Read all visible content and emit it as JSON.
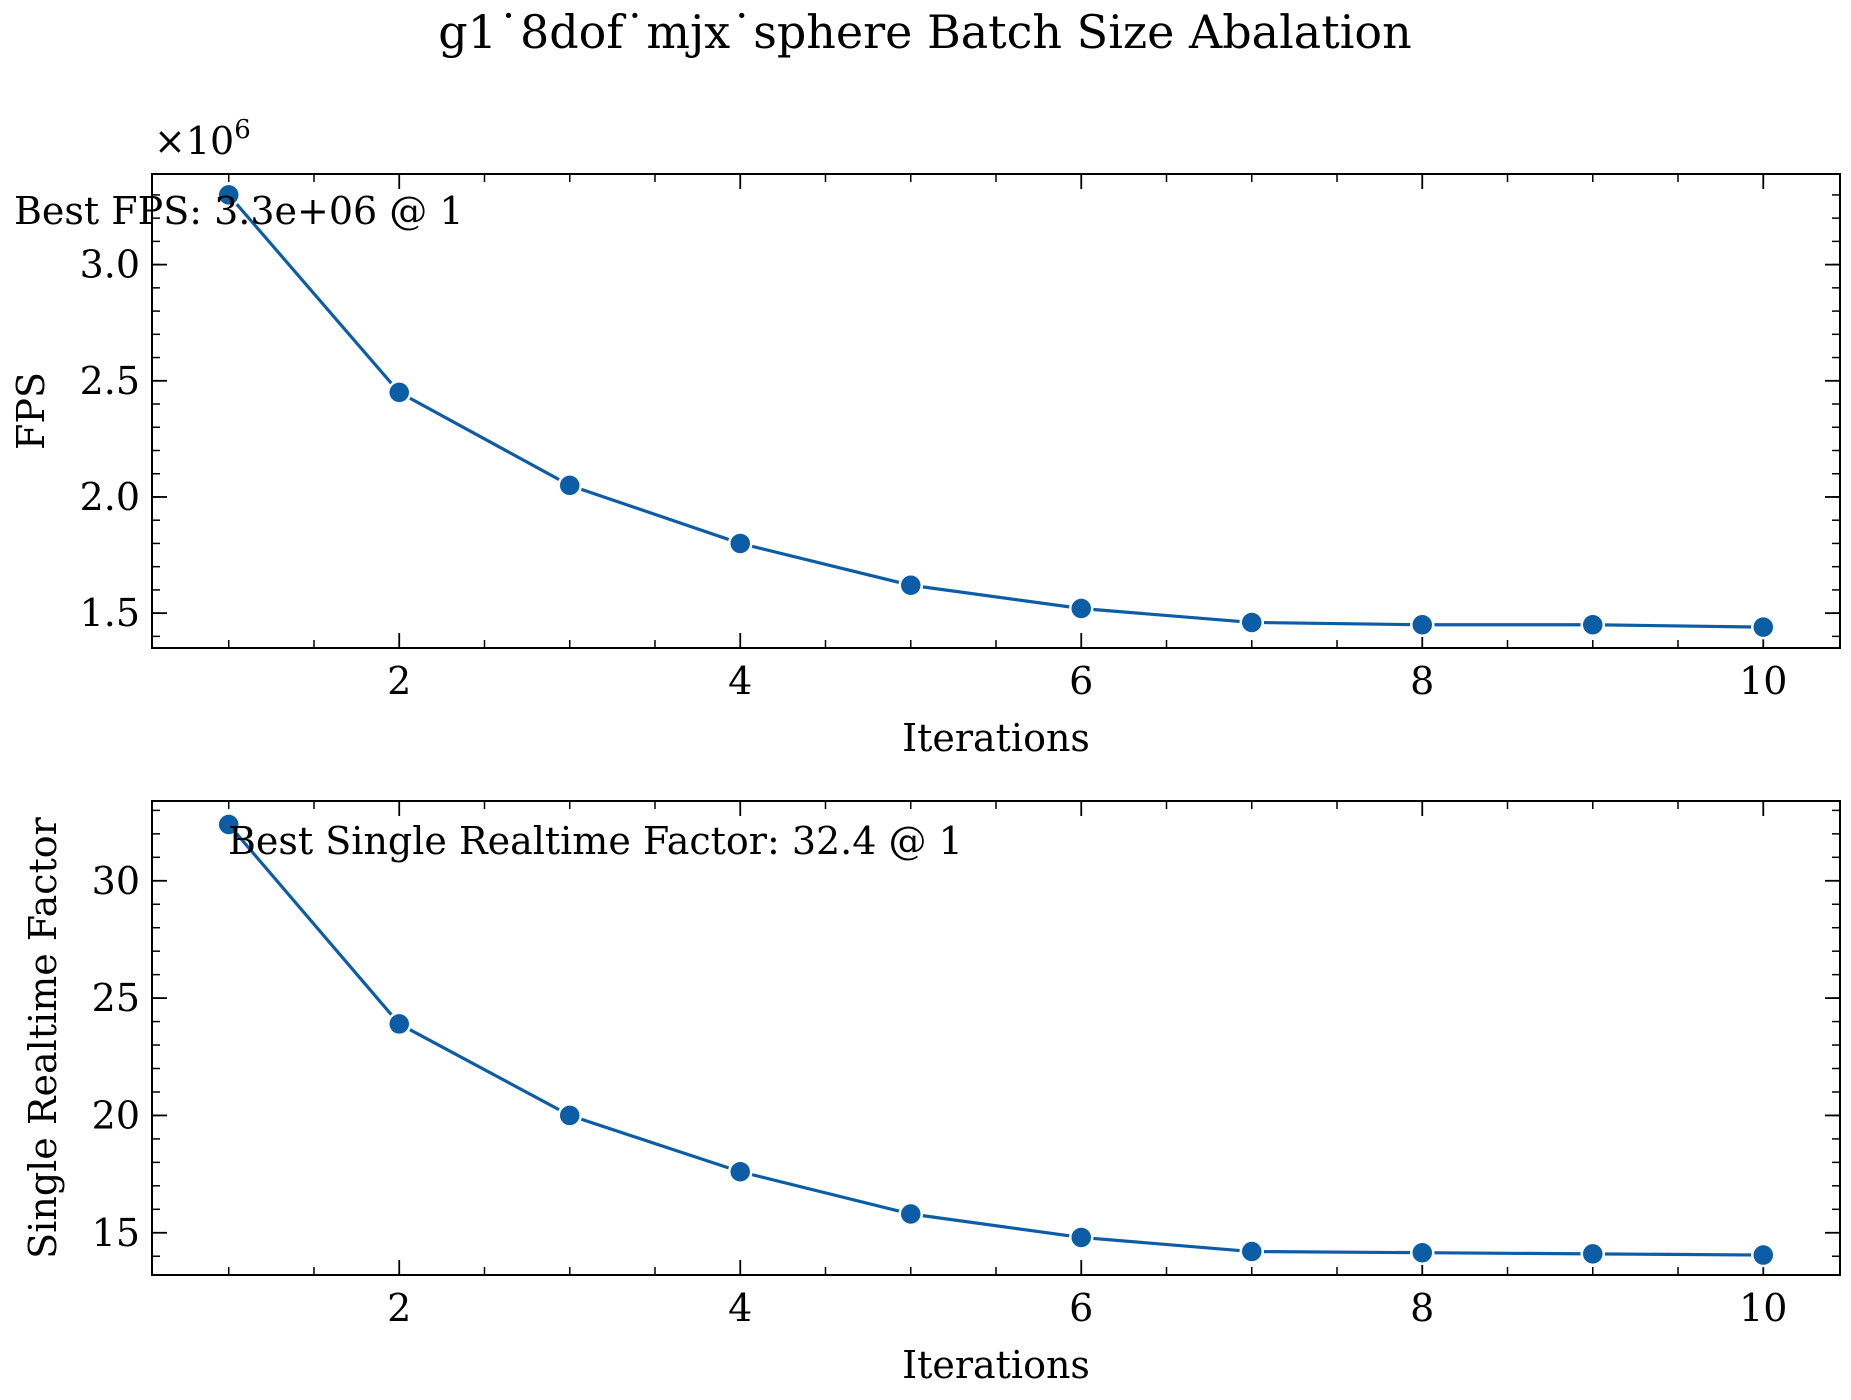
{
  "figure_title": "g1˙8dof˙mjx˙sphere Batch Size Abalation",
  "style": {
    "line_color": "#0C5DA5",
    "axis_color": "#000000",
    "background": "#ffffff"
  },
  "chart_data": [
    {
      "type": "line",
      "xlabel": "Iterations",
      "ylabel": "FPS",
      "y_offset_label": "×10",
      "y_offset_exponent": "6",
      "x": [
        1,
        2,
        3,
        4,
        5,
        6,
        7,
        8,
        9,
        10
      ],
      "values": [
        3.3,
        2.45,
        2.05,
        1.8,
        1.62,
        1.52,
        1.46,
        1.45,
        1.45,
        1.44
      ],
      "xlim": [
        0.55,
        10.45
      ],
      "ylim": [
        1.35,
        3.39
      ],
      "xticks": [
        2,
        4,
        6,
        8,
        10
      ],
      "xtick_labels": [
        "2",
        "4",
        "6",
        "8",
        "10"
      ],
      "yticks": [
        1.5,
        2.0,
        2.5,
        3.0
      ],
      "ytick_labels": [
        "1.5",
        "2.0",
        "2.5",
        "3.0"
      ],
      "annotation": "Best FPS: 3.3e+06 @ 1",
      "grid": false
    },
    {
      "type": "line",
      "xlabel": "Iterations",
      "ylabel": "Single Realtime Factor",
      "x": [
        1,
        2,
        3,
        4,
        5,
        6,
        7,
        8,
        9,
        10
      ],
      "values": [
        32.4,
        23.9,
        20.0,
        17.6,
        15.8,
        14.8,
        14.2,
        14.15,
        14.1,
        14.05
      ],
      "xlim": [
        0.55,
        10.45
      ],
      "ylim": [
        13.2,
        33.4
      ],
      "xticks": [
        2,
        4,
        6,
        8,
        10
      ],
      "xtick_labels": [
        "2",
        "4",
        "6",
        "8",
        "10"
      ],
      "yticks": [
        15,
        20,
        25,
        30
      ],
      "ytick_labels": [
        "15",
        "20",
        "25",
        "30"
      ],
      "annotation": "Best Single Realtime Factor: 32.4 @ 1",
      "grid": false
    }
  ]
}
